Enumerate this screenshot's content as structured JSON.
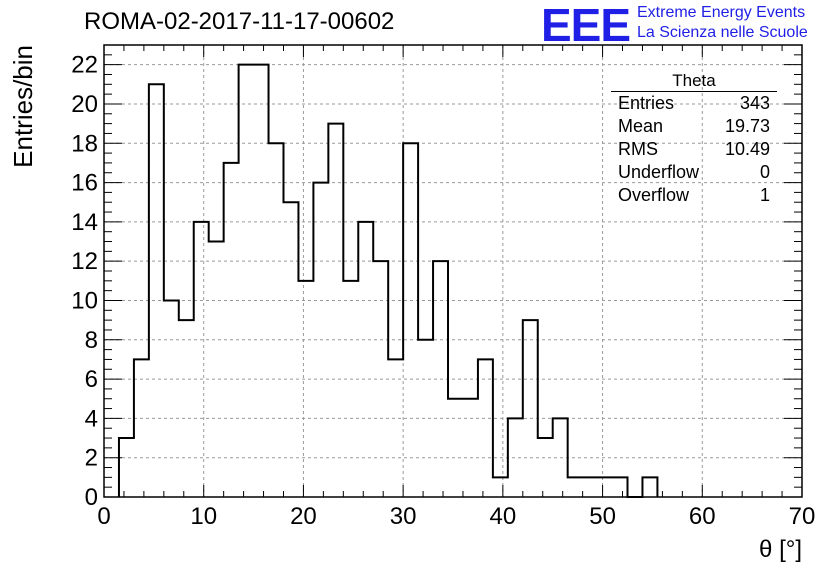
{
  "header": {
    "title": "ROMA-02-2017-11-17-00602",
    "logo_text": "EEE",
    "logo_line1": "Extreme Energy Events",
    "logo_line2": "La Scienza nelle Scuole"
  },
  "stats": {
    "title": "Theta",
    "rows": [
      {
        "label": "Entries",
        "value": "343"
      },
      {
        "label": "Mean",
        "value": "19.73"
      },
      {
        "label": "RMS",
        "value": "10.49"
      },
      {
        "label": "Underflow",
        "value": "0"
      },
      {
        "label": "Overflow",
        "value": "1"
      }
    ]
  },
  "colors": {
    "logo": "#1f1fe6",
    "histogram": "#000000",
    "grid": "#9a9a9a"
  },
  "chart_data": {
    "type": "histogram",
    "xlabel": "θ [°]",
    "ylabel": "Entries/bin",
    "xlim": [
      0,
      70
    ],
    "ylim": [
      0,
      23
    ],
    "grid": true,
    "xticks": [
      0,
      10,
      20,
      30,
      40,
      50,
      60,
      70
    ],
    "yticks": [
      0,
      2,
      4,
      6,
      8,
      10,
      12,
      14,
      16,
      18,
      20,
      22
    ],
    "bin_width": 1.5,
    "bin_edges_start": 1.5,
    "values": [
      3,
      7,
      21,
      10,
      9,
      14,
      13,
      17,
      22,
      22,
      18,
      15,
      11,
      16,
      19,
      11,
      14,
      12,
      7,
      18,
      8,
      12,
      5,
      5,
      7,
      1,
      4,
      9,
      3,
      4,
      1,
      1,
      1,
      1,
      0,
      1
    ]
  }
}
